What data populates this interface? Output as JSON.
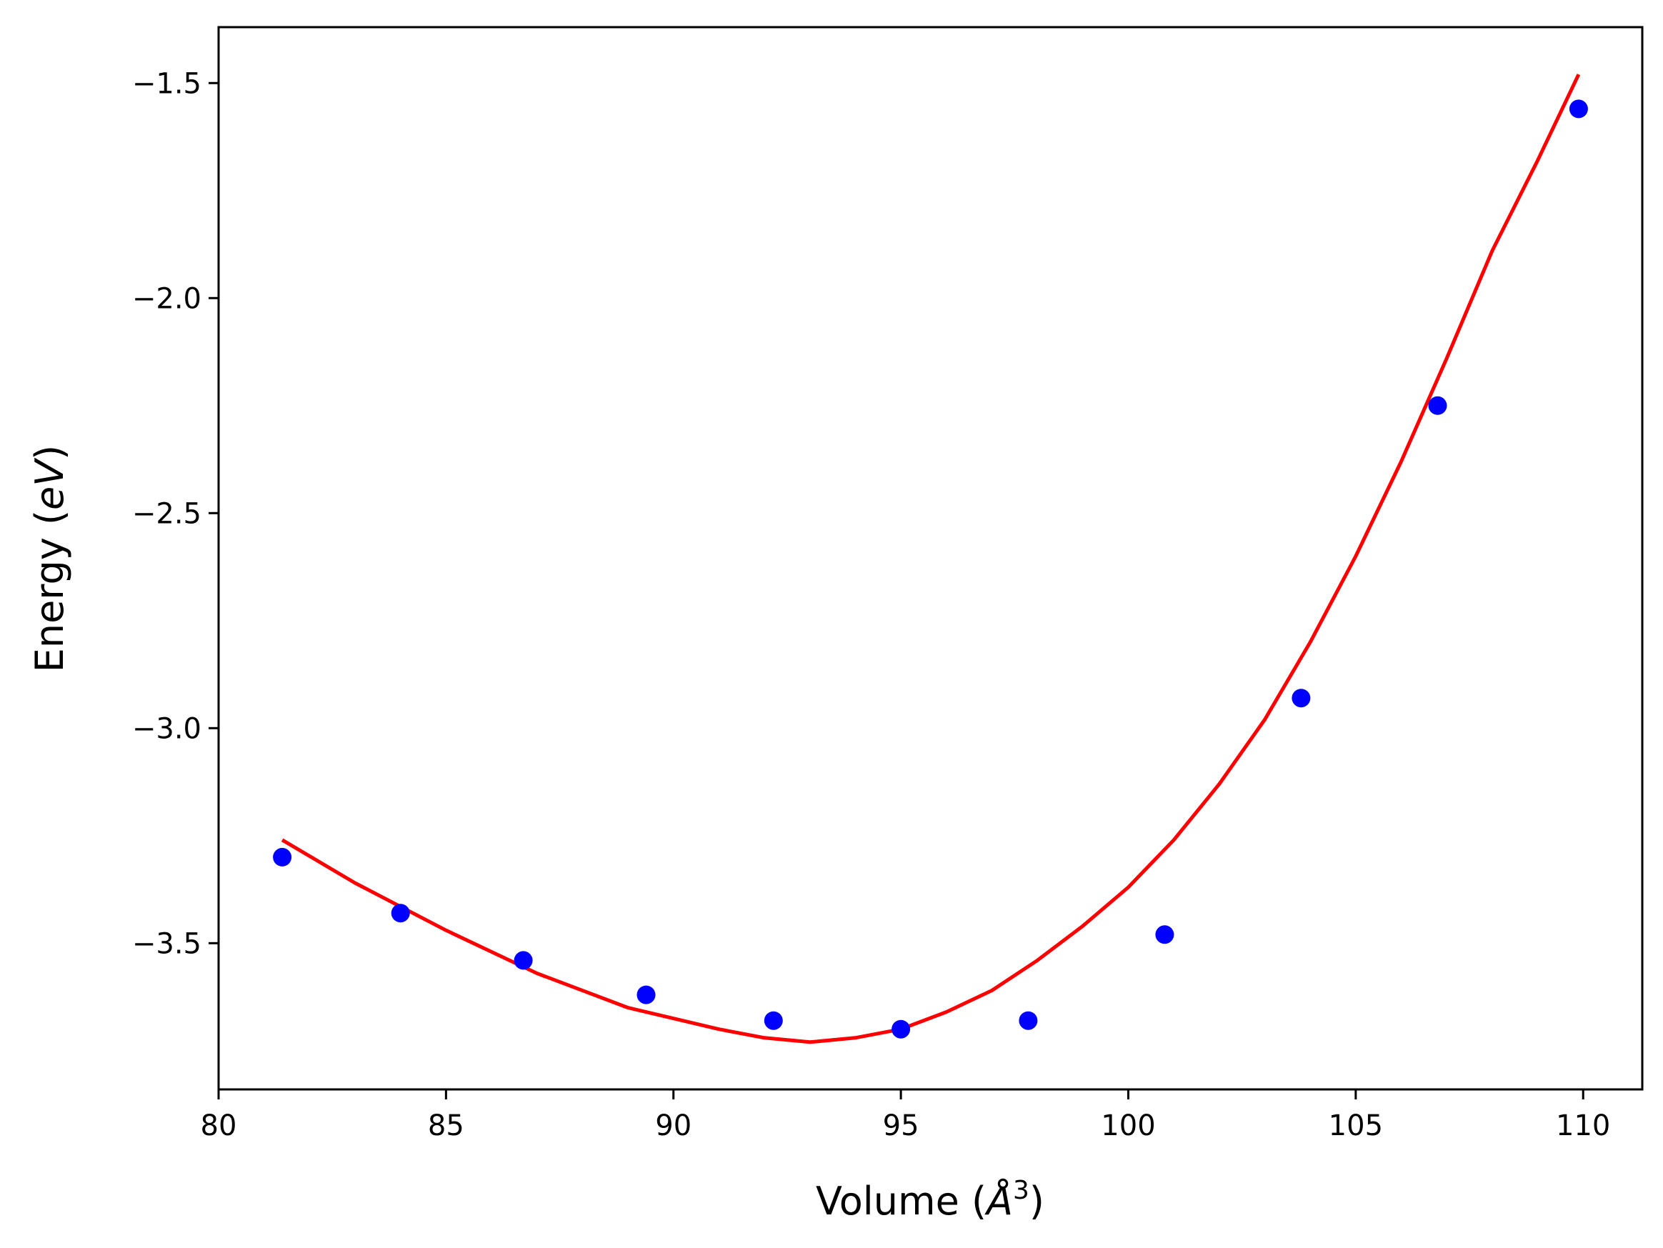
{
  "chart_data": {
    "type": "scatter",
    "xlabel": "Volume (",
    "xlabel_unit": "Å",
    "xlabel_exp": "3",
    "xlabel_close": ")",
    "ylabel": "Energy (",
    "ylabel_unit": "eV",
    "ylabel_close": ")",
    "xlim": [
      80,
      111.3
    ],
    "ylim": [
      -3.84,
      -1.37
    ],
    "grid": false,
    "xticks": [
      80,
      85,
      90,
      95,
      100,
      105,
      110
    ],
    "yticks": [
      -3.5,
      -3.0,
      -2.5,
      -2.0,
      -1.5
    ],
    "xtick_labels": [
      "80",
      "85",
      "90",
      "95",
      "100",
      "105",
      "110"
    ],
    "ytick_labels": [
      "−3.5",
      "−3.0",
      "−2.5",
      "−2.0",
      "−1.5"
    ],
    "series": [
      {
        "kind": "points",
        "color": "#0000ff",
        "x": [
          81.4,
          84.0,
          86.7,
          89.4,
          92.2,
          95.0,
          97.8,
          100.8,
          103.8,
          106.8,
          109.9
        ],
        "y": [
          -3.3,
          -3.43,
          -3.54,
          -3.62,
          -3.68,
          -3.7,
          -3.68,
          -3.48,
          -2.93,
          -2.25,
          -1.56
        ]
      },
      {
        "kind": "line",
        "color": "#ff0000",
        "x": [
          81.4,
          83.0,
          85.0,
          87.0,
          89.0,
          91.0,
          92.0,
          93.0,
          94.0,
          95.0,
          96.0,
          97.0,
          98.0,
          99.0,
          100.0,
          101.0,
          102.0,
          103.0,
          104.0,
          105.0,
          106.0,
          107.0,
          108.0,
          109.0,
          109.9
        ],
        "y": [
          -3.26,
          -3.36,
          -3.47,
          -3.57,
          -3.65,
          -3.7,
          -3.72,
          -3.73,
          -3.72,
          -3.7,
          -3.66,
          -3.61,
          -3.54,
          -3.46,
          -3.37,
          -3.26,
          -3.13,
          -2.98,
          -2.8,
          -2.6,
          -2.38,
          -2.14,
          -1.89,
          -1.68,
          -1.48
        ]
      }
    ]
  }
}
